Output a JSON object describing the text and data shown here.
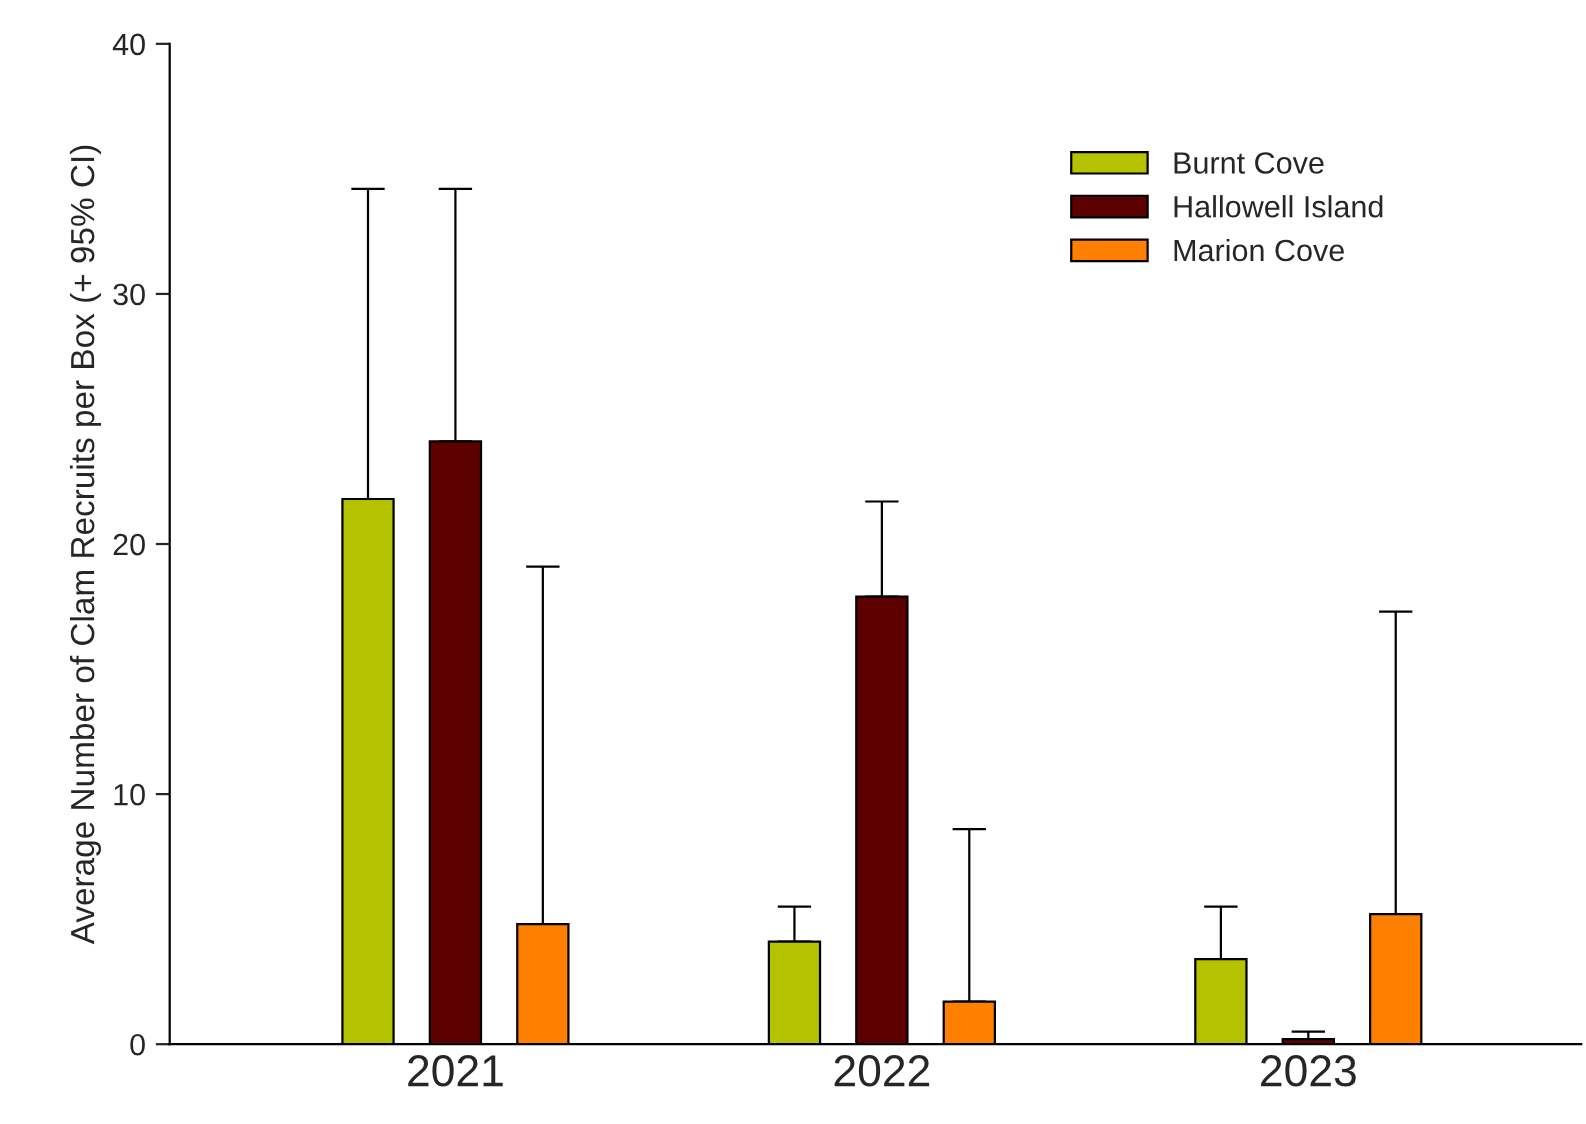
{
  "chart_data": {
    "type": "bar",
    "ylabel": "Average Number of Clam Recruits per Box (+ 95% CI)",
    "categories": [
      "2021",
      "2022",
      "2023"
    ],
    "series": [
      {
        "name": "Burnt Cove",
        "color": "#b5c200",
        "values": [
          21.8,
          4.1,
          3.4
        ],
        "errors": [
          [
            21.8,
            34.2
          ],
          [
            4.1,
            5.5
          ],
          [
            3.4,
            5.5
          ]
        ]
      },
      {
        "name": "Hallowell Island",
        "color": "#5c0000",
        "values": [
          24.1,
          17.9,
          0.2
        ],
        "errors": [
          [
            24.1,
            34.2
          ],
          [
            17.9,
            21.7
          ],
          [
            0.2,
            0.5
          ]
        ]
      },
      {
        "name": "Marion Cove",
        "color": "#ff8000",
        "values": [
          4.8,
          1.7,
          5.2
        ],
        "errors": [
          [
            4.8,
            19.1
          ],
          [
            1.7,
            8.6
          ],
          [
            5.2,
            17.3
          ]
        ]
      }
    ],
    "ylim": [
      0,
      40
    ],
    "yticks": [
      0,
      10,
      20,
      30,
      40
    ],
    "grid": false,
    "legend": "top right"
  }
}
